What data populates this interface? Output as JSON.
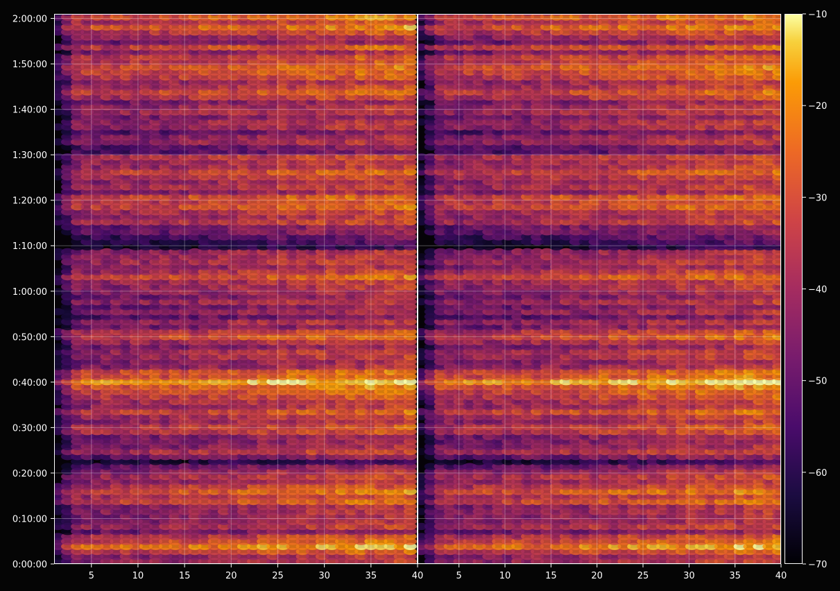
{
  "chart_data": {
    "type": "heatmap",
    "colormap": "inferno",
    "background": "#050505",
    "grid": true,
    "panels": [
      {
        "xlim": [
          1,
          40
        ],
        "xticks": [
          5,
          10,
          15,
          20,
          25,
          30,
          35,
          40
        ]
      },
      {
        "xlim": [
          0.5,
          40
        ],
        "xticks": [
          5,
          10,
          15,
          20,
          25,
          30,
          35,
          40
        ]
      }
    ],
    "yaxis": {
      "ylim": [
        0,
        7260
      ],
      "ticks": [
        0,
        600,
        1200,
        1800,
        2400,
        3000,
        3600,
        4200,
        4800,
        5400,
        6000,
        6600,
        7200
      ],
      "tick_labels": [
        "0:00:00",
        "0:10:00",
        "0:20:00",
        "0:30:00",
        "0:40:00",
        "0:50:00",
        "1:00:00",
        "1:10:00",
        "1:20:00",
        "1:30:00",
        "1:40:00",
        "1:50:00",
        "2:00:00"
      ]
    },
    "colorbar": {
      "range": [
        -70,
        -10
      ],
      "ticks": [
        -70,
        -60,
        -50,
        -40,
        -30,
        -20,
        -10
      ],
      "tick_labels": [
        "−70",
        "−60",
        "−50",
        "−40",
        "−30",
        "−20",
        "−10"
      ]
    },
    "intensity_profile": {
      "time_seconds": [
        0,
        120,
        250,
        400,
        640,
        850,
        1000,
        1330,
        1480,
        1700,
        2050,
        2150,
        2310,
        2400,
        2480,
        2700,
        2850,
        3000,
        3350,
        3700,
        4050,
        4200,
        4450,
        4750,
        4850,
        5020,
        5200,
        5500,
        5700,
        6000,
        6300,
        6500,
        6900,
        7080,
        7200
      ],
      "level_dbfs": [
        -42,
        -34,
        -26,
        -38,
        -46,
        -30,
        -25,
        -55,
        -38,
        -40,
        -32,
        -30,
        -24,
        -22,
        -25,
        -43,
        -40,
        -33,
        -44,
        -35,
        -31,
        -56,
        -40,
        -33,
        -30,
        -38,
        -30,
        -48,
        -40,
        -42,
        -34,
        -30,
        -37,
        -28,
        -30
      ]
    }
  }
}
